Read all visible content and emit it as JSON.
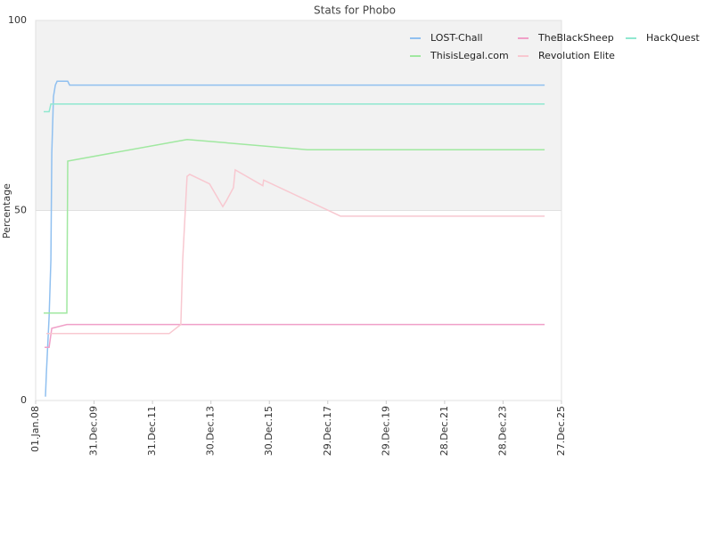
{
  "chart_data": {
    "type": "line",
    "title": "Stats for Phobo",
    "y_label": "Percentage",
    "xlim": [
      "2008-01-01",
      "2025-12-27"
    ],
    "xticks": [
      {
        "value": "2008-01-01",
        "label": "01.Jan.08"
      },
      {
        "value": "2009-12-31",
        "label": "31.Dec.09"
      },
      {
        "value": "2011-12-31",
        "label": "31.Dec.11"
      },
      {
        "value": "2013-12-30",
        "label": "30.Dec.13"
      },
      {
        "value": "2015-12-30",
        "label": "30.Dec.15"
      },
      {
        "value": "2017-12-29",
        "label": "29.Dec.17"
      },
      {
        "value": "2019-12-29",
        "label": "29.Dec.19"
      },
      {
        "value": "2021-12-28",
        "label": "28.Dec.21"
      },
      {
        "value": "2023-12-28",
        "label": "28.Dec.23"
      },
      {
        "value": "2025-12-27",
        "label": "27.Dec.25"
      }
    ],
    "ylim": [
      0,
      100
    ],
    "yticks": [
      0,
      50,
      100
    ],
    "grid": true,
    "legend": "top-right",
    "series": [
      {
        "name": "LOST-Chall",
        "color": "#90c0f0",
        "x": [
          "2008-05-02",
          "2008-05-14",
          "2008-06-17",
          "2008-07-09",
          "2008-07-20",
          "2008-08-11",
          "2008-09-03",
          "2008-09-25",
          "2009-02-05",
          "2009-02-28",
          "2025-05-30"
        ],
        "values": [
          1,
          7,
          22,
          37,
          65,
          80,
          83,
          84,
          84,
          83,
          83
        ]
      },
      {
        "name": "TheBlackSheep",
        "color": "#f0a0c8",
        "x": [
          "2008-04-21",
          "2008-06-17",
          "2008-07-20",
          "2009-01-25",
          "2025-05-30"
        ],
        "values": [
          14,
          14,
          19,
          20,
          20
        ]
      },
      {
        "name": "HackQuest",
        "color": "#90e8d0",
        "x": [
          "2008-04-10",
          "2008-06-17",
          "2008-07-09",
          "2025-05-30"
        ],
        "values": [
          76,
          76,
          78,
          78
        ]
      },
      {
        "name": "ThisisLegal.com",
        "color": "#a0e8a0",
        "x": [
          "2008-04-10",
          "2009-01-25",
          "2009-02-05",
          "2013-03-07",
          "2017-04-18",
          "2025-05-30"
        ],
        "values": [
          23,
          23,
          63,
          68.7,
          66,
          66
        ]
      },
      {
        "name": "Revolution Elite",
        "color": "#f8c8d0",
        "x": [
          "2008-05-14",
          "2012-07-27",
          "2012-12-19",
          "2013-01-11",
          "2013-03-07",
          "2013-04-09",
          "2013-12-12",
          "2014-05-28",
          "2014-07-10",
          "2014-10-07",
          "2014-10-29",
          "2015-10-09",
          "2015-10-20",
          "2018-06-06",
          "2025-05-30"
        ],
        "values": [
          17.6,
          17.6,
          20,
          37,
          59,
          59.5,
          57,
          51,
          52.5,
          56,
          60.7,
          56.5,
          58,
          48.5,
          48.5
        ]
      }
    ]
  }
}
